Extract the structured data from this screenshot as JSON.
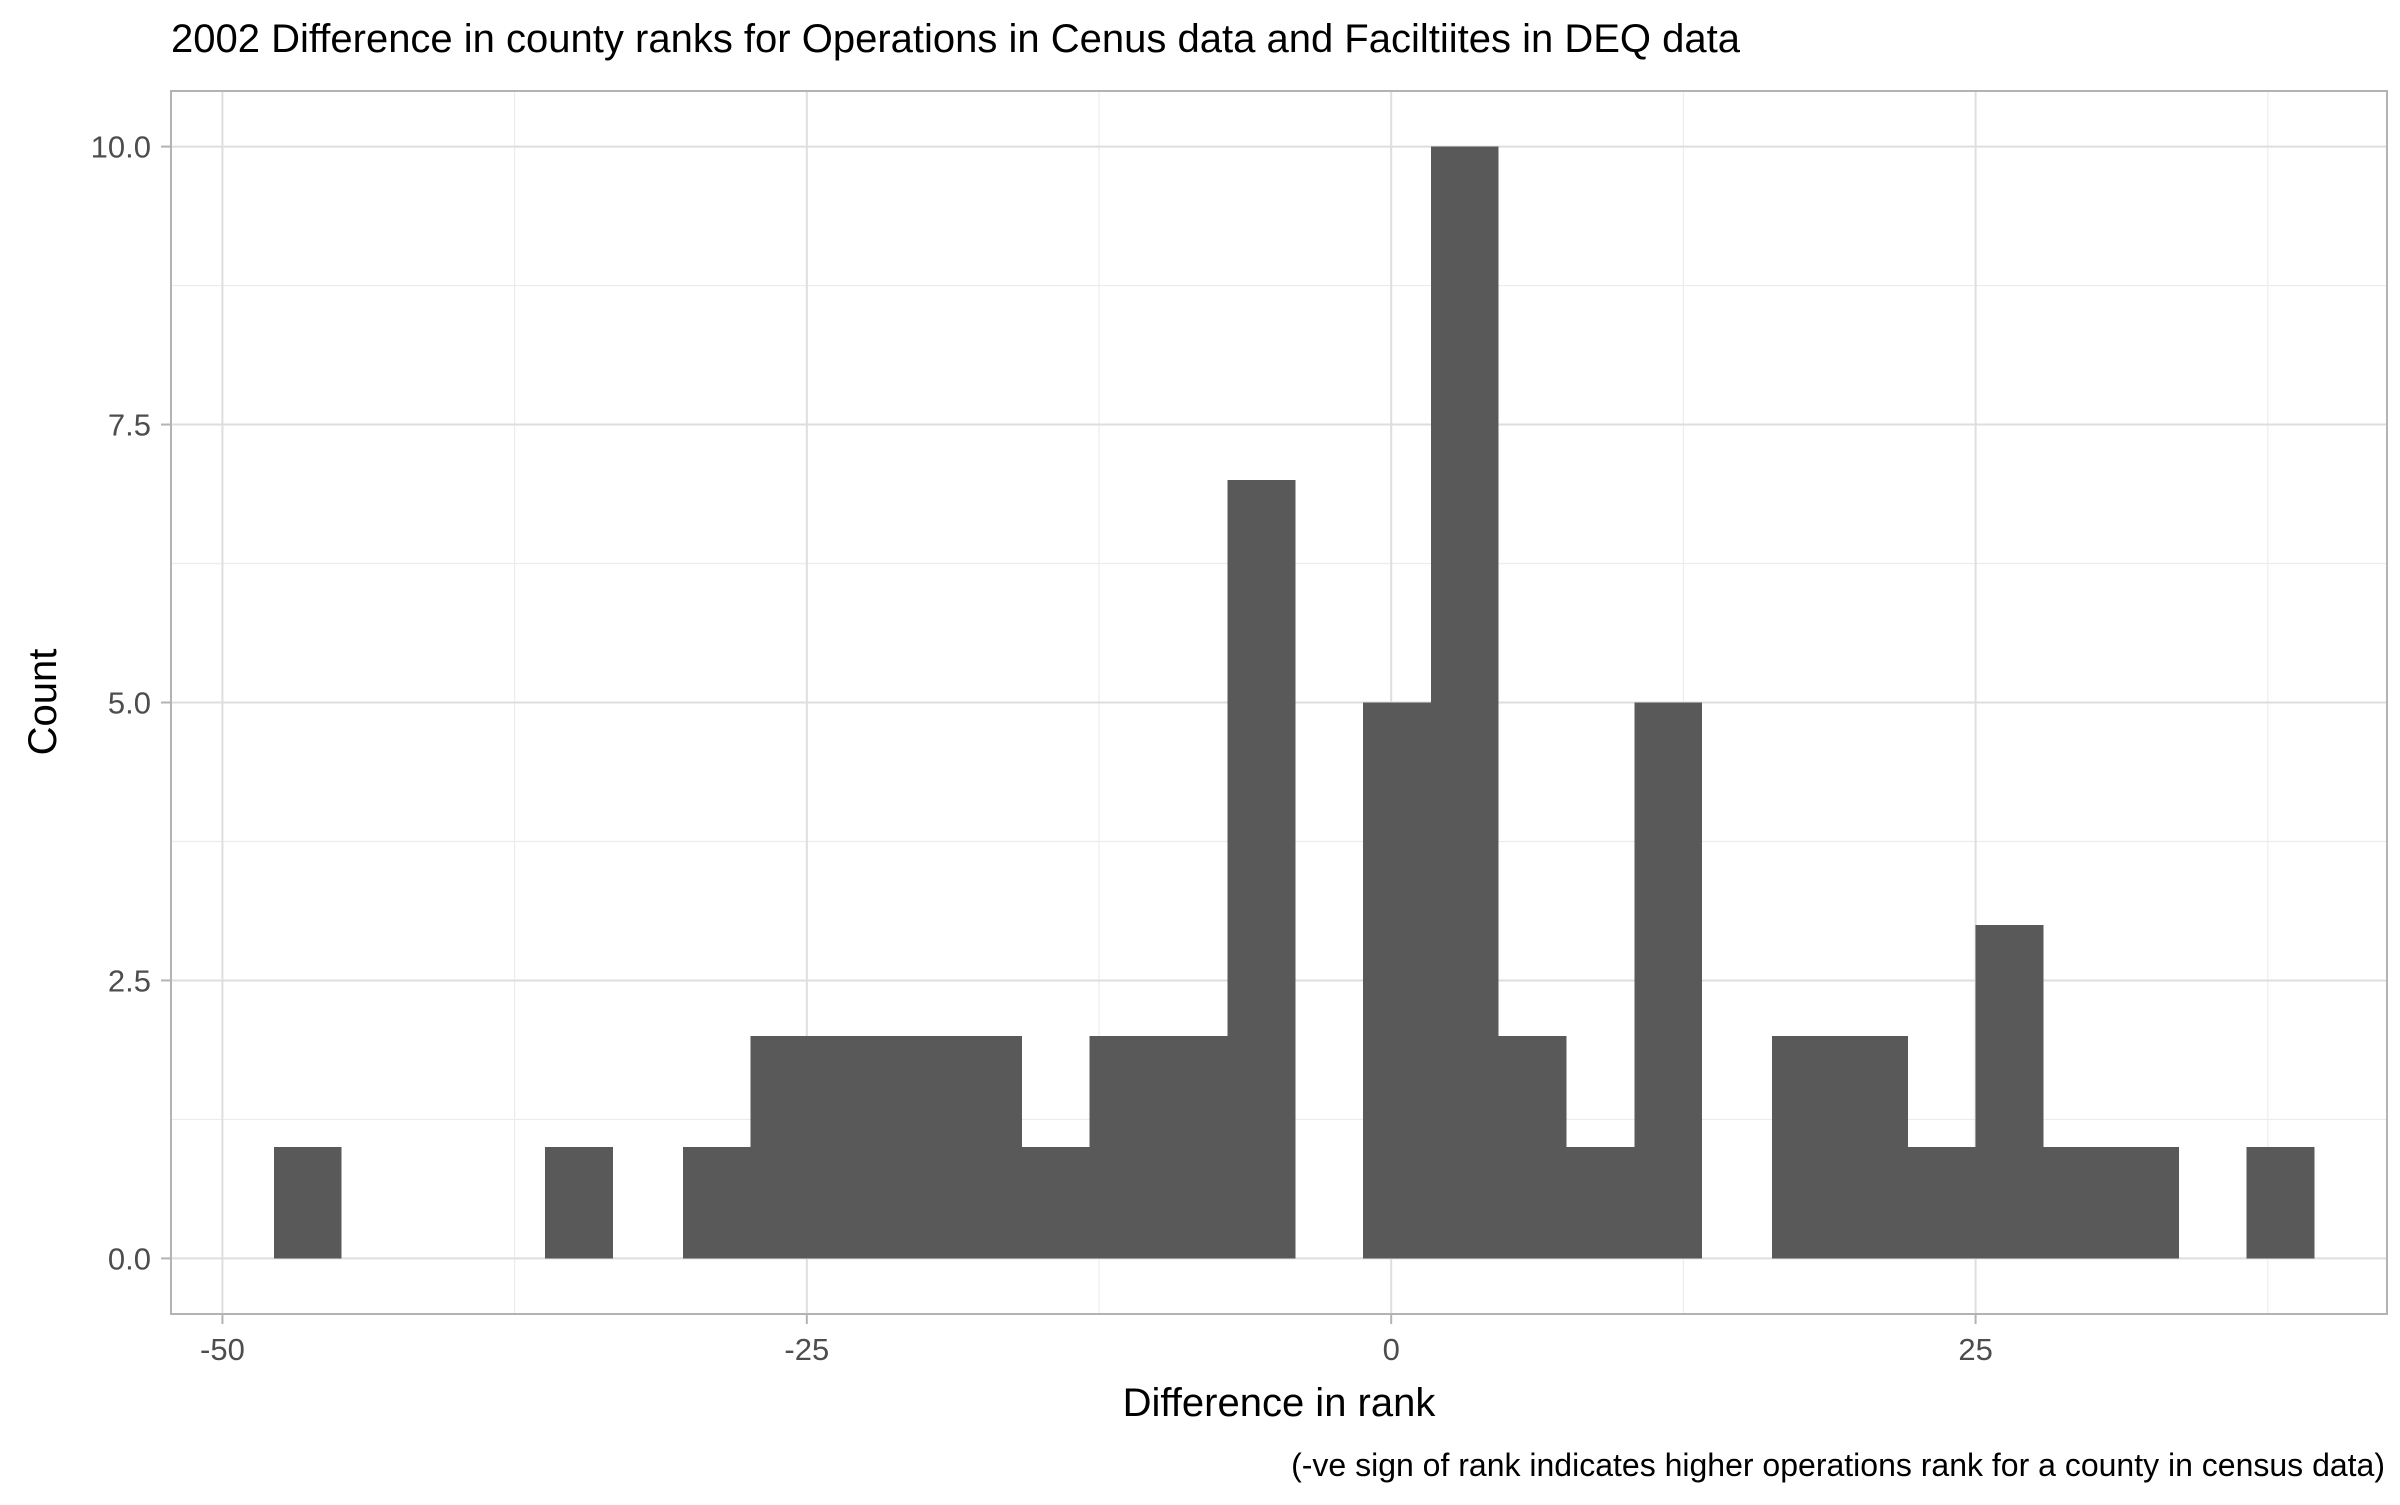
{
  "chart_data": {
    "type": "bar",
    "title": "2002 Difference in county ranks for Operations in Cenus data and Faciltiites in DEQ data",
    "xlabel": "Difference in rank",
    "ylabel": "Count",
    "caption": "(-ve sign of rank indicates higher operations rank for a county in census data)",
    "xlim": [
      -52.2,
      42.6
    ],
    "ylim": [
      -0.5,
      10.5
    ],
    "x_ticks": [
      {
        "value": -50,
        "label": "-50"
      },
      {
        "value": -25,
        "label": "-25"
      },
      {
        "value": 0,
        "label": "0"
      },
      {
        "value": 25,
        "label": "25"
      }
    ],
    "y_ticks": [
      {
        "value": 0,
        "label": "0.0"
      },
      {
        "value": 2.5,
        "label": "2.5"
      },
      {
        "value": 5,
        "label": "5.0"
      },
      {
        "value": 7.5,
        "label": "7.5"
      },
      {
        "value": 10,
        "label": "10.0"
      }
    ],
    "bins": [
      {
        "x0": -47.8,
        "x1": -44.9,
        "count": 1
      },
      {
        "x0": -44.9,
        "x1": -42.0,
        "count": 0
      },
      {
        "x0": -42.0,
        "x1": -39.1,
        "count": 0
      },
      {
        "x0": -39.1,
        "x1": -36.2,
        "count": 0
      },
      {
        "x0": -36.2,
        "x1": -33.3,
        "count": 1
      },
      {
        "x0": -33.3,
        "x1": -30.3,
        "count": 0
      },
      {
        "x0": -30.3,
        "x1": -27.4,
        "count": 1
      },
      {
        "x0": -27.4,
        "x1": -24.5,
        "count": 2
      },
      {
        "x0": -24.5,
        "x1": -21.6,
        "count": 2
      },
      {
        "x0": -21.6,
        "x1": -18.7,
        "count": 2
      },
      {
        "x0": -18.7,
        "x1": -15.8,
        "count": 2
      },
      {
        "x0": -15.8,
        "x1": -12.9,
        "count": 1
      },
      {
        "x0": -12.9,
        "x1": -10.0,
        "count": 2
      },
      {
        "x0": -10.0,
        "x1": -7.0,
        "count": 2
      },
      {
        "x0": -7.0,
        "x1": -4.1,
        "count": 7
      },
      {
        "x0": -4.1,
        "x1": -1.2,
        "count": 0
      },
      {
        "x0": -1.2,
        "x1": 1.7,
        "count": 5
      },
      {
        "x0": 1.7,
        "x1": 4.6,
        "count": 10
      },
      {
        "x0": 4.6,
        "x1": 7.5,
        "count": 2
      },
      {
        "x0": 7.5,
        "x1": 10.4,
        "count": 1
      },
      {
        "x0": 10.4,
        "x1": 13.3,
        "count": 5
      },
      {
        "x0": 13.3,
        "x1": 16.3,
        "count": 0
      },
      {
        "x0": 16.3,
        "x1": 19.2,
        "count": 2
      },
      {
        "x0": 19.2,
        "x1": 22.1,
        "count": 2
      },
      {
        "x0": 22.1,
        "x1": 25.0,
        "count": 1
      },
      {
        "x0": 25.0,
        "x1": 27.9,
        "count": 3
      },
      {
        "x0": 27.9,
        "x1": 30.8,
        "count": 1
      },
      {
        "x0": 30.8,
        "x1": 33.7,
        "count": 1
      },
      {
        "x0": 33.7,
        "x1": 36.6,
        "count": 0
      },
      {
        "x0": 36.6,
        "x1": 39.5,
        "count": 1
      }
    ],
    "bar_color": "#595959",
    "grid": true,
    "legend": "none"
  }
}
